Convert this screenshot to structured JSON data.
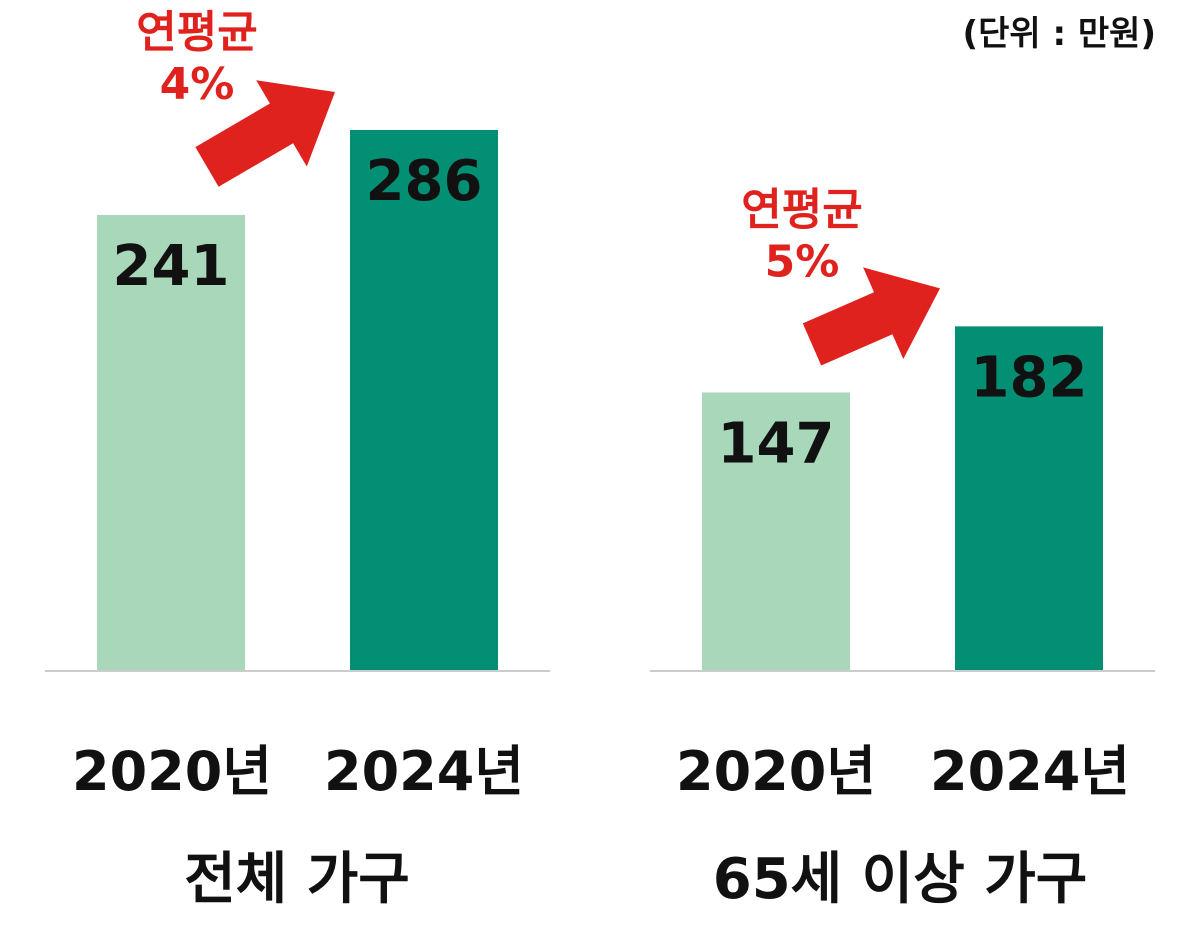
{
  "unit_label": "(단위 : 만원)",
  "colors": {
    "bar_2020": "#a8d8b9",
    "bar_2024": "#038f73",
    "arrow": "#e0221e",
    "growth_text": "#e0221e",
    "axis": "#cccccc"
  },
  "chart_data": [
    {
      "type": "bar",
      "group_label": "전체 가구",
      "categories": [
        "2020년",
        "2024년"
      ],
      "values": [
        241,
        286
      ],
      "growth": {
        "line1": "연평균",
        "line2": "4%"
      }
    },
    {
      "type": "bar",
      "group_label": "65세 이상 가구",
      "categories": [
        "2020년",
        "2024년"
      ],
      "values": [
        147,
        182
      ],
      "growth": {
        "line1": "연평균",
        "line2": "5%"
      }
    }
  ]
}
